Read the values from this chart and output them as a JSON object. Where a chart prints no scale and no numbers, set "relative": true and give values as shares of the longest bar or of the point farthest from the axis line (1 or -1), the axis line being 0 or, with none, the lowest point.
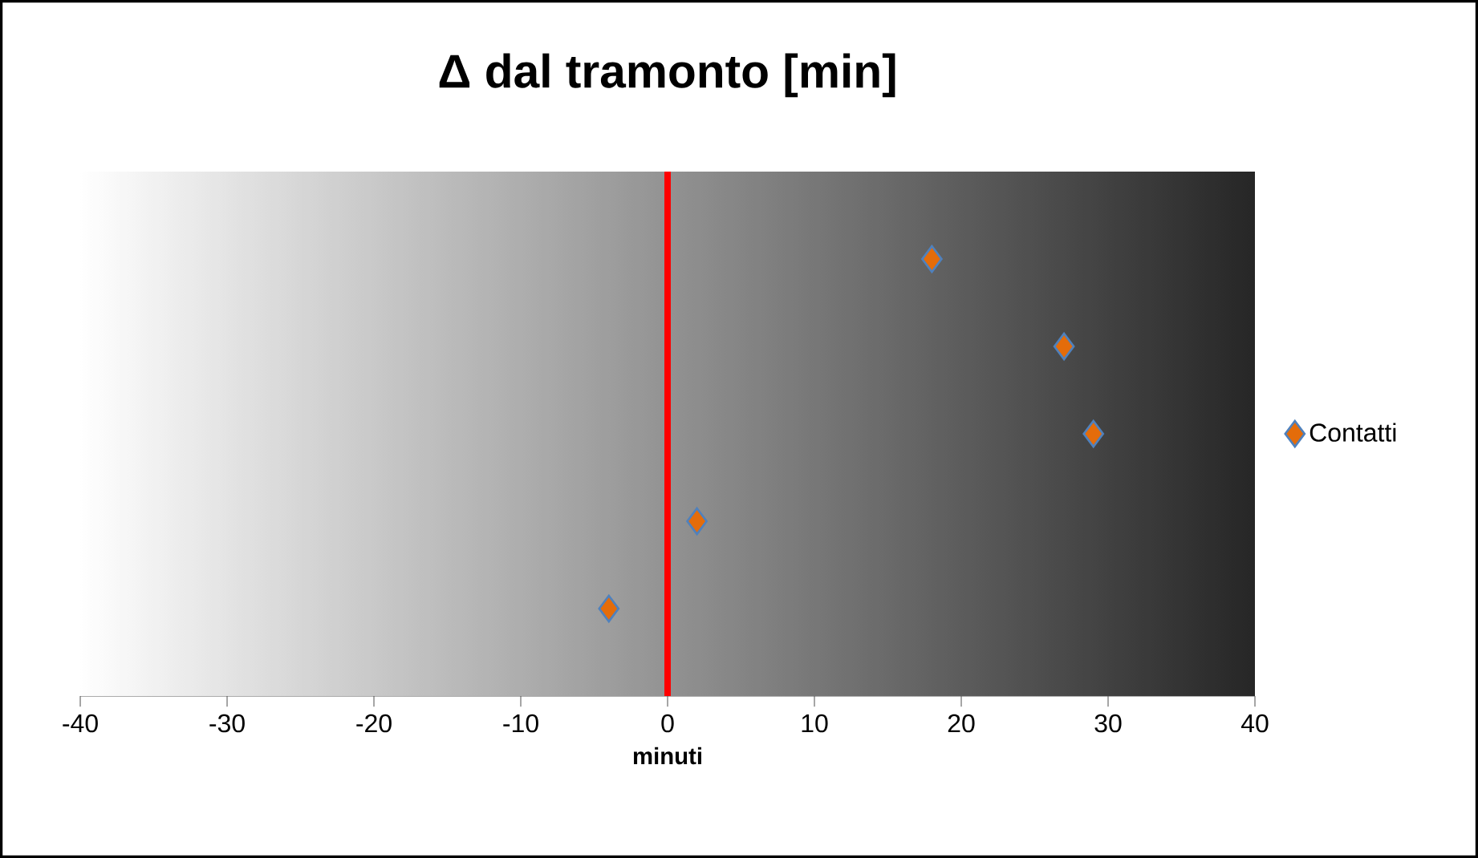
{
  "chart_data": {
    "type": "scatter",
    "title": "Δ dal tramonto [min]",
    "xlabel": "minuti",
    "x": [
      18,
      27,
      29,
      2,
      -4
    ],
    "series": [
      {
        "name": "Contatti",
        "color": "#e46c0a",
        "values": [
          1,
          0.8,
          0.6,
          0.4,
          0.2
        ]
      }
    ],
    "relative": true,
    "xlim": [
      -40,
      40
    ],
    "xticks": [
      -40,
      -30,
      -20,
      -10,
      0,
      10,
      20,
      30,
      40
    ],
    "ref_lines": [
      {
        "axis": "x",
        "value": 0,
        "color": "#ff0000"
      }
    ],
    "marker": "diamond",
    "legend": "right",
    "tick_labels": "x",
    "grid": false
  }
}
